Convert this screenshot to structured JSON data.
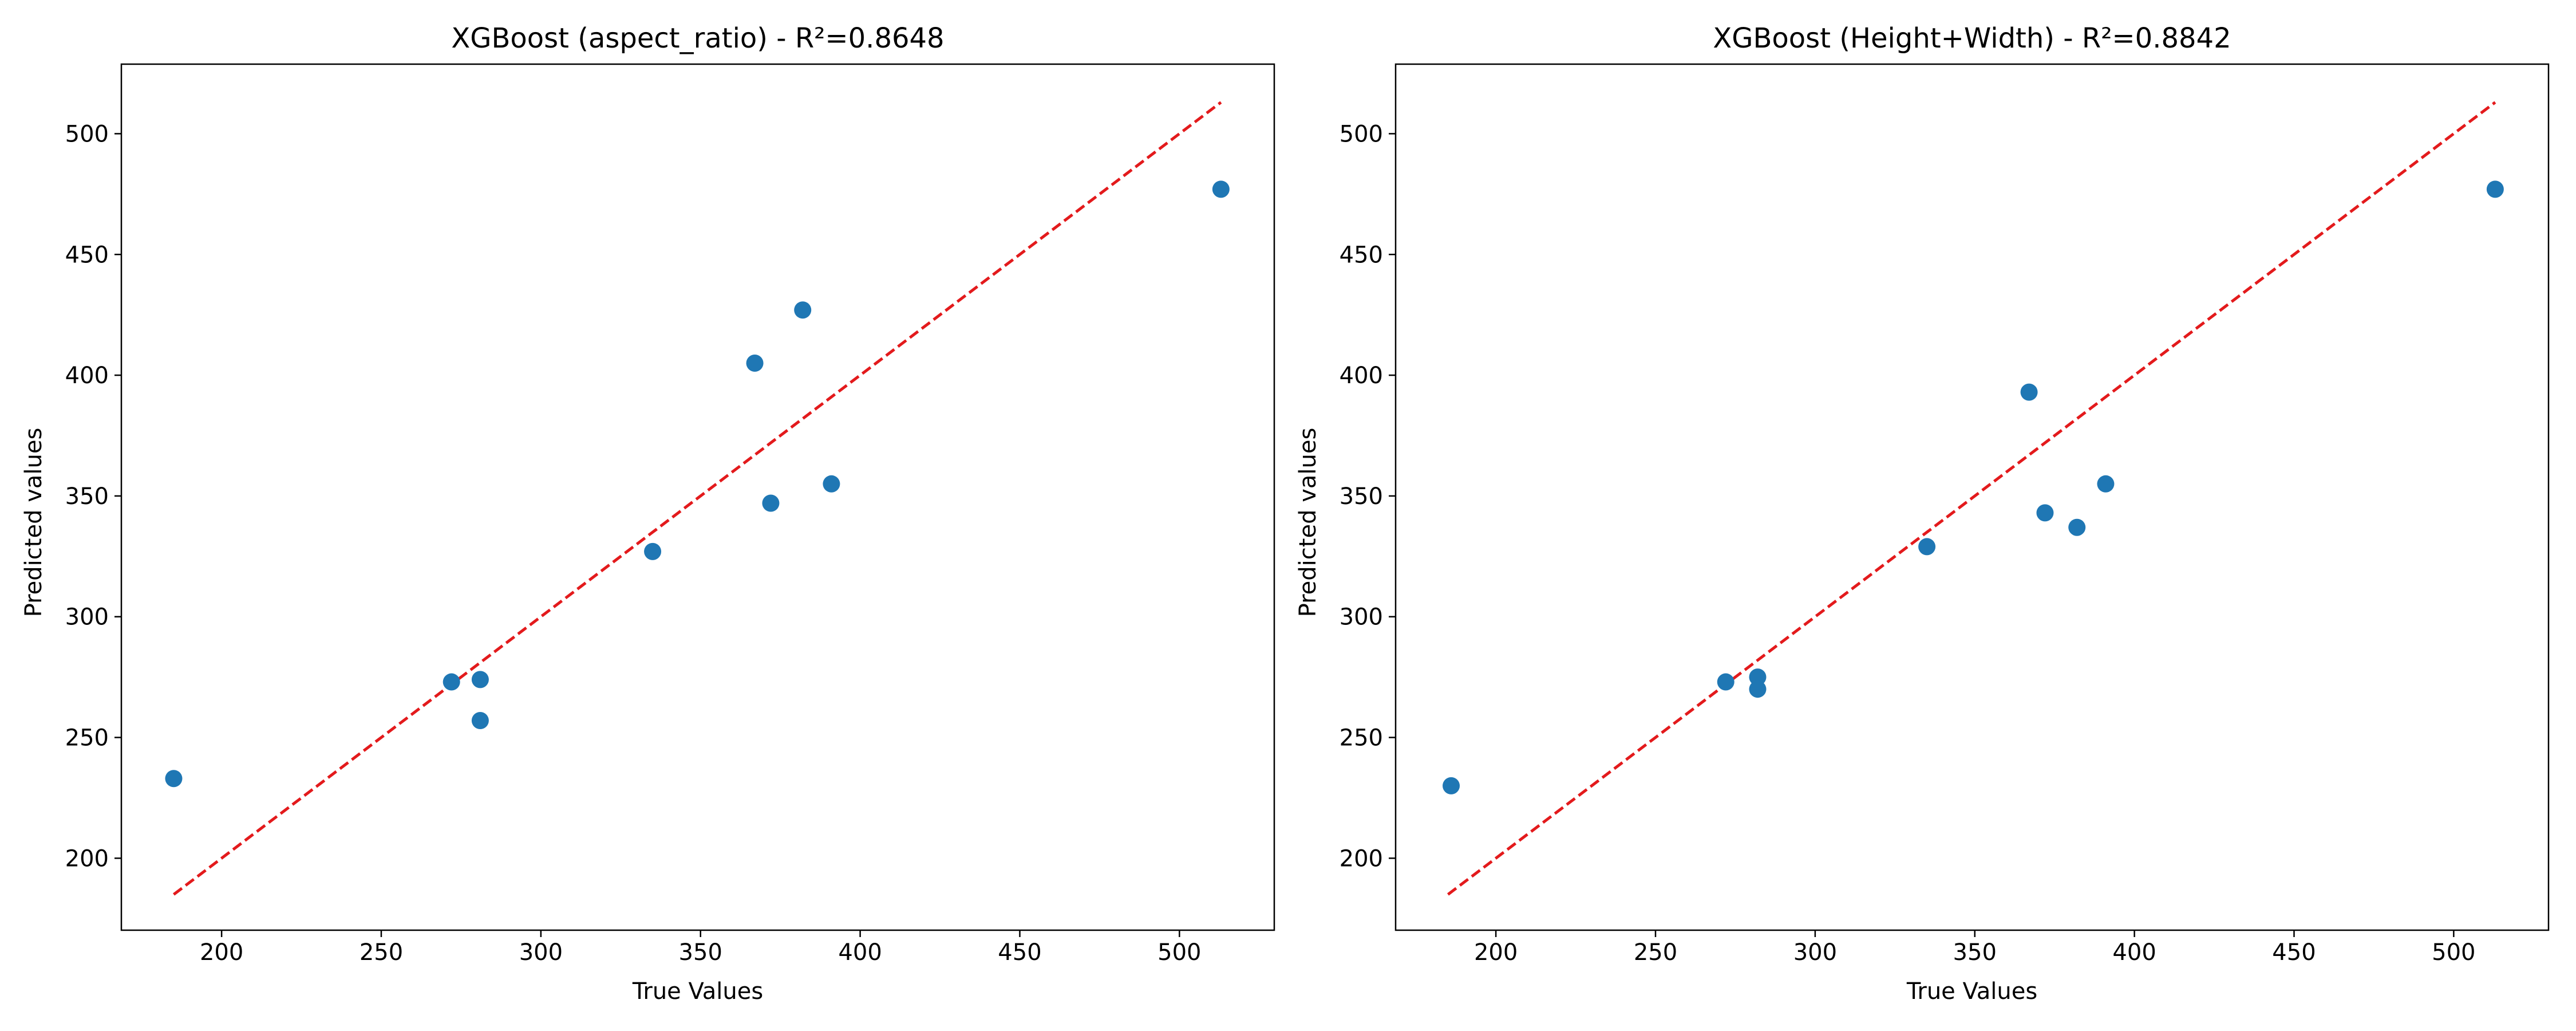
{
  "chart_data": [
    {
      "type": "scatter",
      "title": "XGBoost (aspect_ratio) - R²=0.8648",
      "xlabel": "True Values",
      "ylabel": "Predicted values",
      "xlim": [
        168.6,
        529.7
      ],
      "ylim": [
        170.2,
        528.8
      ],
      "xticks": [
        200,
        250,
        300,
        350,
        400,
        450,
        500
      ],
      "yticks": [
        200,
        250,
        300,
        350,
        400,
        450,
        500
      ],
      "grid": false,
      "colors": {
        "points": "#1f77b4",
        "reference_line": "#e31a1c"
      },
      "reference_line": {
        "style": "dashed",
        "x": [
          185,
          513
        ],
        "y": [
          185,
          513
        ]
      },
      "points": [
        {
          "x": 185,
          "y": 233
        },
        {
          "x": 272,
          "y": 273
        },
        {
          "x": 281,
          "y": 274
        },
        {
          "x": 281,
          "y": 257
        },
        {
          "x": 335,
          "y": 327
        },
        {
          "x": 367,
          "y": 405
        },
        {
          "x": 372,
          "y": 347
        },
        {
          "x": 382,
          "y": 427
        },
        {
          "x": 391,
          "y": 355
        },
        {
          "x": 513,
          "y": 477
        }
      ]
    },
    {
      "type": "scatter",
      "title": "XGBoost (Height+Width) - R²=0.8842",
      "xlabel": "True Values",
      "ylabel": "Predicted values",
      "xlim": [
        168.6,
        529.7
      ],
      "ylim": [
        170.2,
        528.8
      ],
      "xticks": [
        200,
        250,
        300,
        350,
        400,
        450,
        500
      ],
      "yticks": [
        200,
        250,
        300,
        350,
        400,
        450,
        500
      ],
      "grid": false,
      "colors": {
        "points": "#1f77b4",
        "reference_line": "#e31a1c"
      },
      "reference_line": {
        "style": "dashed",
        "x": [
          185,
          513
        ],
        "y": [
          185,
          513
        ]
      },
      "points": [
        {
          "x": 186,
          "y": 230
        },
        {
          "x": 272,
          "y": 273
        },
        {
          "x": 282,
          "y": 275
        },
        {
          "x": 282,
          "y": 270
        },
        {
          "x": 335,
          "y": 329
        },
        {
          "x": 367,
          "y": 393
        },
        {
          "x": 372,
          "y": 343
        },
        {
          "x": 382,
          "y": 337
        },
        {
          "x": 391,
          "y": 355
        },
        {
          "x": 513,
          "y": 477
        }
      ]
    }
  ]
}
